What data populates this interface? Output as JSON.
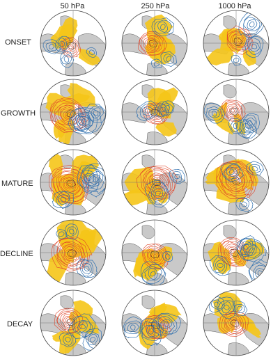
{
  "columns": [
    "50 hPa",
    "250 hPa",
    "1000 hPa"
  ],
  "rows": [
    "ONSET",
    "GROWTH",
    "MATURE",
    "DECLINE",
    "DECAY"
  ],
  "colors": {
    "land": "#c9c9c9",
    "positive_shading": "#f5c518",
    "positive_contour": "#e0452a",
    "negative_contour": "#2f6fae",
    "frame": "#444444",
    "coast": "#333333"
  },
  "map_projection": "polar-stereographic",
  "panel_count": 15
}
